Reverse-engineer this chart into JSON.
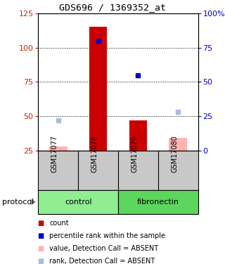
{
  "title": "GDS696 / 1369352_at",
  "samples": [
    "GSM17077",
    "GSM17078",
    "GSM17079",
    "GSM17080"
  ],
  "groups": [
    {
      "name": "control",
      "color": "#90ee90",
      "samples": [
        0,
        1
      ]
    },
    {
      "name": "fibronectin",
      "color": "#5cd65c",
      "samples": [
        2,
        3
      ]
    }
  ],
  "bar_values": [
    null,
    115,
    47,
    null
  ],
  "blue_squares": [
    null,
    80,
    55,
    null
  ],
  "light_blue_squares": [
    47,
    null,
    null,
    53
  ],
  "pink_bar_values": [
    28,
    null,
    null,
    34
  ],
  "ylim_left": [
    25,
    125
  ],
  "ylim_right": [
    0,
    100
  ],
  "yticks_left": [
    25,
    50,
    75,
    100,
    125
  ],
  "yticks_right": [
    0,
    25,
    50,
    75,
    100
  ],
  "ytick_labels_right": [
    "0",
    "25",
    "50",
    "75",
    "100%"
  ],
  "hlines": [
    50,
    75,
    100
  ],
  "left_color": "#cc2200",
  "right_color": "#0000cc",
  "red_bar_color": "#cc0000",
  "pink_bar_color": "#ffb3b3",
  "blue_sq_color": "#0000cc",
  "light_blue_sq_color": "#aabbdd",
  "sample_bg": "#c8c8c8",
  "legend_items": [
    {
      "label": "count",
      "color": "#cc0000"
    },
    {
      "label": "percentile rank within the sample",
      "color": "#0000cc"
    },
    {
      "label": "value, Detection Call = ABSENT",
      "color": "#ffb3b3"
    },
    {
      "label": "rank, Detection Call = ABSENT",
      "color": "#aabbdd"
    }
  ],
  "bar_width": 0.45
}
